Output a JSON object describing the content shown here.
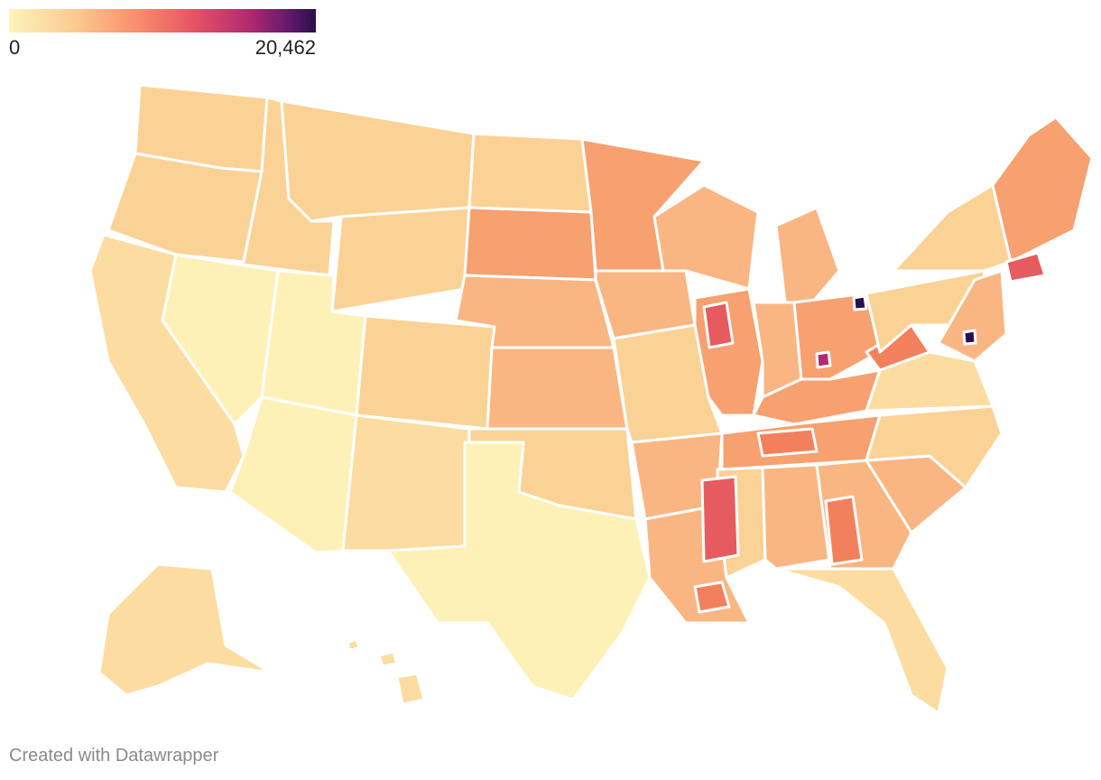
{
  "legend": {
    "min_label": "0",
    "max_label": "20,462",
    "scale_colors": [
      "#fdf3bb",
      "#fbc98f",
      "#f98d6c",
      "#e65464",
      "#b22a70",
      "#6a1b6b",
      "#2b0f4f"
    ]
  },
  "map": {
    "region_colors": {
      "pale": "#fdf1b8",
      "light": "#fcdca0",
      "tan": "#fbd296",
      "peach": "#f9b683",
      "orange": "#f7a070",
      "coral": "#f3805d",
      "red": "#e65b5f",
      "magenta": "#b22a70",
      "dark": "#2b0f4f",
      "border": "#ffffff"
    }
  },
  "footer": {
    "credit": "Created with Datawrapper"
  }
}
